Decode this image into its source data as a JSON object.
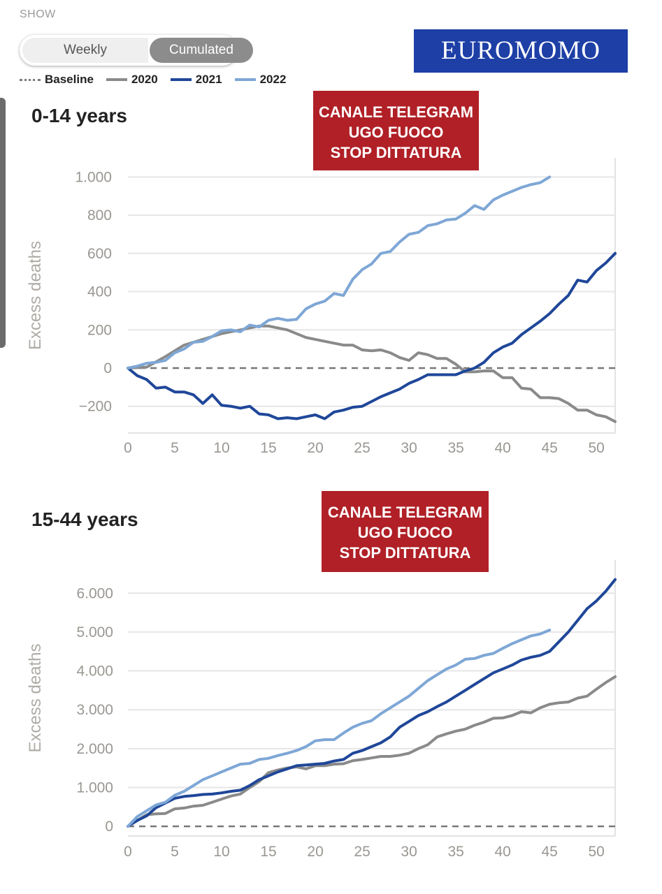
{
  "header": {
    "show_label": "SHOW",
    "toggle": {
      "weekly_label": "Weekly",
      "cumulated_label": "Cumulated",
      "selected": "Cumulated"
    },
    "logo_text": "EUROMOMO"
  },
  "legend": {
    "items": [
      {
        "label": "Baseline",
        "color": "#7a7a7a",
        "style": "dotted"
      },
      {
        "label": "2020",
        "color": "#8a8a8a",
        "style": "solid"
      },
      {
        "label": "2021",
        "color": "#1f4799",
        "style": "solid"
      },
      {
        "label": "2022",
        "color": "#7ea7d6",
        "style": "solid"
      }
    ]
  },
  "watermark": {
    "line1": "CANALE TELEGRAM",
    "line2": "UGO FUOCO",
    "line3": "STOP DITTATURA"
  },
  "chart_data": [
    {
      "type": "line",
      "title": "0-14 years",
      "xlabel": "",
      "ylabel": "Excess deaths",
      "xlim": [
        0,
        52
      ],
      "ylim": [
        -340,
        1100
      ],
      "xticks": [
        0,
        5,
        10,
        15,
        20,
        25,
        30,
        35,
        40,
        45,
        50
      ],
      "yticks": [
        -200,
        0,
        200,
        400,
        600,
        800,
        1000
      ],
      "ytick_labels": [
        "−200",
        "0",
        "200",
        "400",
        "600",
        "800",
        "1.000"
      ],
      "xtick_labels": [
        "0",
        "5",
        "10",
        "15",
        "20",
        "25",
        "30",
        "35",
        "40",
        "45",
        "50"
      ],
      "baseline": 0,
      "series": [
        {
          "name": "2020",
          "color": "#8a8a8a",
          "x": [
            0,
            2,
            4,
            6,
            8,
            10,
            12,
            14,
            15,
            17,
            19,
            21,
            23,
            24,
            25,
            26,
            27,
            28,
            29,
            30,
            31,
            32,
            33,
            34,
            35,
            36,
            37,
            38,
            39,
            40,
            41,
            42,
            43,
            44,
            45,
            46,
            47,
            48,
            49,
            50,
            51,
            52
          ],
          "values": [
            0,
            5,
            60,
            120,
            150,
            180,
            200,
            220,
            220,
            200,
            160,
            140,
            120,
            120,
            95,
            90,
            95,
            80,
            55,
            40,
            80,
            70,
            50,
            50,
            20,
            -20,
            -20,
            -15,
            -15,
            -50,
            -50,
            -105,
            -110,
            -155,
            -155,
            -160,
            -185,
            -220,
            -220,
            -245,
            -255,
            -280
          ]
        },
        {
          "name": "2021",
          "color": "#1f4799",
          "x": [
            0,
            1,
            2,
            3,
            4,
            5,
            6,
            7,
            8,
            9,
            10,
            11,
            12,
            13,
            14,
            15,
            16,
            17,
            18,
            19,
            20,
            21,
            22,
            23,
            24,
            25,
            26,
            27,
            28,
            29,
            30,
            31,
            32,
            33,
            34,
            35,
            36,
            37,
            38,
            39,
            40,
            41,
            42,
            43,
            44,
            45,
            46,
            47,
            48,
            49,
            50,
            51,
            52
          ],
          "values": [
            0,
            -40,
            -60,
            -105,
            -100,
            -125,
            -125,
            -140,
            -185,
            -140,
            -195,
            -200,
            -210,
            -200,
            -240,
            -245,
            -265,
            -260,
            -265,
            -255,
            -245,
            -265,
            -230,
            -220,
            -205,
            -200,
            -175,
            -150,
            -130,
            -110,
            -80,
            -60,
            -35,
            -35,
            -35,
            -35,
            -15,
            0,
            30,
            80,
            110,
            130,
            175,
            210,
            245,
            285,
            335,
            380,
            460,
            450,
            510,
            550,
            600
          ]
        },
        {
          "name": "2022",
          "color": "#7ea7d6",
          "x": [
            0,
            1,
            2,
            3,
            4,
            5,
            6,
            7,
            8,
            9,
            10,
            11,
            12,
            13,
            14,
            15,
            16,
            17,
            18,
            19,
            20,
            21,
            22,
            23,
            24,
            25,
            26,
            27,
            28,
            29,
            30,
            31,
            32,
            33,
            34,
            35,
            36,
            37,
            38,
            39,
            40,
            41,
            42,
            43,
            44,
            45
          ],
          "values": [
            0,
            10,
            25,
            30,
            40,
            80,
            100,
            135,
            140,
            165,
            195,
            200,
            190,
            225,
            215,
            250,
            260,
            250,
            255,
            310,
            335,
            350,
            390,
            380,
            465,
            515,
            545,
            600,
            610,
            660,
            700,
            710,
            745,
            755,
            775,
            780,
            810,
            850,
            830,
            880,
            905,
            925,
            945,
            960,
            970,
            1000
          ]
        }
      ]
    },
    {
      "type": "line",
      "title": "15-44 years",
      "xlabel": "",
      "ylabel": "Excess deaths",
      "xlim": [
        0,
        52
      ],
      "ylim": [
        -250,
        6850
      ],
      "xticks": [
        0,
        5,
        10,
        15,
        20,
        25,
        30,
        35,
        40,
        45,
        50
      ],
      "yticks": [
        0,
        1000,
        2000,
        3000,
        4000,
        5000,
        6000
      ],
      "ytick_labels": [
        "0",
        "1.000",
        "2.000",
        "3.000",
        "4.000",
        "5.000",
        "6.000"
      ],
      "xtick_labels": [
        "0",
        "5",
        "10",
        "15",
        "20",
        "25",
        "30",
        "35",
        "40",
        "45",
        "50"
      ],
      "baseline": 0,
      "series": [
        {
          "name": "2020",
          "color": "#8a8a8a",
          "x": [
            0,
            1,
            2,
            3,
            4,
            5,
            6,
            7,
            8,
            9,
            10,
            11,
            12,
            13,
            14,
            15,
            16,
            17,
            18,
            19,
            20,
            21,
            22,
            23,
            24,
            25,
            26,
            27,
            28,
            29,
            30,
            31,
            32,
            33,
            34,
            35,
            36,
            37,
            38,
            39,
            40,
            41,
            42,
            43,
            44,
            45,
            46,
            47,
            48,
            49,
            50,
            51,
            52
          ],
          "values": [
            0,
            150,
            300,
            320,
            330,
            450,
            470,
            520,
            540,
            620,
            700,
            780,
            830,
            1000,
            1150,
            1380,
            1450,
            1500,
            1530,
            1480,
            1560,
            1560,
            1600,
            1610,
            1690,
            1720,
            1760,
            1800,
            1800,
            1830,
            1880,
            2000,
            2100,
            2300,
            2380,
            2450,
            2500,
            2600,
            2680,
            2780,
            2790,
            2850,
            2950,
            2920,
            3050,
            3140,
            3180,
            3200,
            3300,
            3350,
            3530,
            3700,
            3850
          ]
        },
        {
          "name": "2021",
          "color": "#1f4799",
          "x": [
            0,
            1,
            2,
            3,
            4,
            5,
            6,
            7,
            8,
            9,
            10,
            11,
            12,
            13,
            14,
            15,
            16,
            17,
            18,
            19,
            20,
            21,
            22,
            23,
            24,
            25,
            26,
            27,
            28,
            29,
            30,
            31,
            32,
            33,
            34,
            35,
            36,
            37,
            38,
            39,
            40,
            41,
            42,
            43,
            44,
            45,
            46,
            47,
            48,
            49,
            50,
            51,
            52
          ],
          "values": [
            0,
            150,
            270,
            480,
            600,
            720,
            770,
            790,
            820,
            830,
            860,
            900,
            930,
            1050,
            1200,
            1300,
            1400,
            1480,
            1560,
            1580,
            1600,
            1620,
            1680,
            1720,
            1880,
            1950,
            2050,
            2150,
            2300,
            2550,
            2700,
            2850,
            2950,
            3080,
            3200,
            3350,
            3500,
            3650,
            3800,
            3950,
            4050,
            4150,
            4280,
            4350,
            4400,
            4500,
            4750,
            5000,
            5300,
            5600,
            5800,
            6050,
            6350
          ]
        },
        {
          "name": "2022",
          "color": "#7ea7d6",
          "x": [
            0,
            1,
            2,
            3,
            4,
            5,
            6,
            7,
            8,
            9,
            10,
            11,
            12,
            13,
            14,
            15,
            16,
            17,
            18,
            19,
            20,
            21,
            22,
            23,
            24,
            25,
            26,
            27,
            28,
            29,
            30,
            31,
            32,
            33,
            34,
            35,
            36,
            37,
            38,
            39,
            40,
            41,
            42,
            43,
            44,
            45
          ],
          "values": [
            0,
            250,
            400,
            550,
            620,
            800,
            900,
            1050,
            1200,
            1300,
            1400,
            1500,
            1600,
            1620,
            1720,
            1750,
            1820,
            1880,
            1950,
            2050,
            2200,
            2230,
            2230,
            2400,
            2550,
            2650,
            2720,
            2900,
            3050,
            3200,
            3350,
            3550,
            3750,
            3900,
            4050,
            4150,
            4300,
            4320,
            4400,
            4450,
            4580,
            4700,
            4800,
            4900,
            4950,
            5050
          ]
        }
      ]
    }
  ]
}
